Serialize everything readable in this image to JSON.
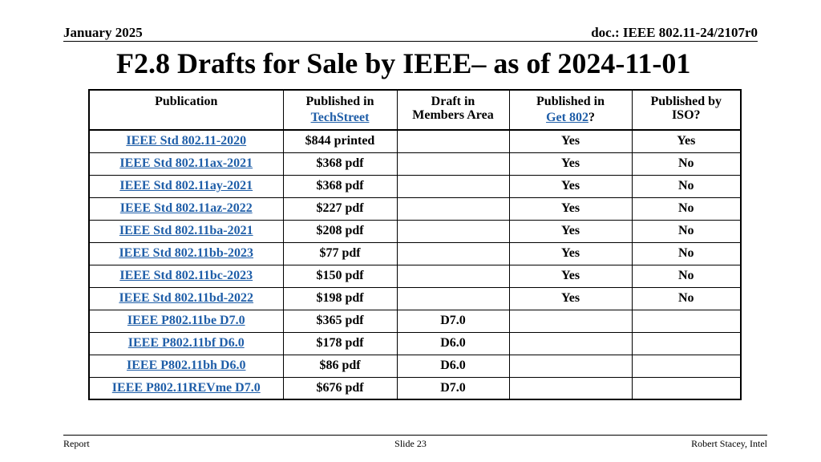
{
  "header": {
    "date": "January 2025",
    "doc": "doc.: IEEE 802.11-24/2107r0"
  },
  "title": "F2.8 Drafts for Sale by IEEE– as of 2024-11-01",
  "table": {
    "headers": {
      "publication": "Publication",
      "techstreet_line1": "Published in",
      "techstreet_link": "TechStreet",
      "members_line1": "Draft in",
      "members_line2": "Members Area",
      "get802_line1": "Published in",
      "get802_link": "Get 802",
      "get802_suffix": "?",
      "iso_line1": "Published by",
      "iso_line2": "ISO?"
    },
    "rows": [
      {
        "publication": "IEEE Std 802.11-2020",
        "techstreet": "$844 printed",
        "members": "",
        "get802": "Yes",
        "iso": "Yes"
      },
      {
        "publication": "IEEE Std 802.11ax-2021",
        "techstreet": "$368 pdf",
        "members": "",
        "get802": "Yes",
        "iso": "No"
      },
      {
        "publication": "IEEE Std 802.11ay-2021",
        "techstreet": "$368 pdf",
        "members": "",
        "get802": "Yes",
        "iso": "No"
      },
      {
        "publication": "IEEE Std 802.11az-2022",
        "techstreet": "$227 pdf",
        "members": "",
        "get802": "Yes",
        "iso": "No"
      },
      {
        "publication": "IEEE Std 802.11ba-2021",
        "techstreet": "$208 pdf",
        "members": "",
        "get802": "Yes",
        "iso": "No"
      },
      {
        "publication": "IEEE Std 802.11bb-2023",
        "techstreet": "$77 pdf",
        "members": "",
        "get802": "Yes",
        "iso": "No"
      },
      {
        "publication": "IEEE Std 802.11bc-2023",
        "techstreet": "$150 pdf",
        "members": "",
        "get802": "Yes",
        "iso": "No"
      },
      {
        "publication": "IEEE Std 802.11bd-2022",
        "techstreet": "$198 pdf",
        "members": "",
        "get802": "Yes",
        "iso": "No"
      },
      {
        "publication": "IEEE P802.11be D7.0",
        "techstreet": "$365 pdf",
        "members": "D7.0",
        "get802": "",
        "iso": ""
      },
      {
        "publication": "IEEE P802.11bf D6.0",
        "techstreet": "$178 pdf",
        "members": "D6.0",
        "get802": "",
        "iso": ""
      },
      {
        "publication": "IEEE P802.11bh D6.0",
        "techstreet": "$86 pdf",
        "members": "D6.0",
        "get802": "",
        "iso": ""
      },
      {
        "publication": "IEEE P802.11REVme D7.0",
        "techstreet": "$676 pdf",
        "members": "D7.0",
        "get802": "",
        "iso": ""
      }
    ]
  },
  "footer": {
    "left": "Report",
    "center": "Slide 23",
    "right": "Robert Stacey, Intel"
  },
  "colors": {
    "link": "#1f5ea8"
  }
}
